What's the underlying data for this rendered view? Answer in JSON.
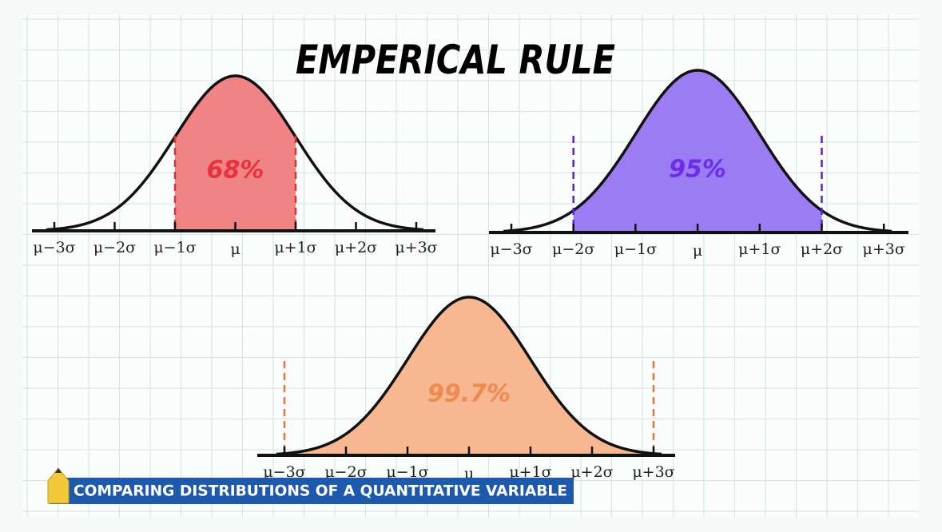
{
  "title": "EMPERICAL RULE",
  "panels": [
    {
      "label": "68%",
      "ticks": [
        "μ−3σ",
        "μ−2σ",
        "μ−1σ",
        "μ",
        "μ+1σ",
        "μ+2σ",
        "μ+3σ"
      ]
    },
    {
      "label": "95%",
      "ticks": [
        "μ−3σ",
        "μ−2σ",
        "μ−1σ",
        "μ",
        "μ+1σ",
        "μ+2σ",
        "μ+3σ"
      ]
    },
    {
      "label": "99.7%",
      "ticks": [
        "μ−3σ",
        "μ−2σ",
        "μ−1σ",
        "μ",
        "μ+1σ",
        "μ+2σ",
        "μ+3σ"
      ]
    }
  ],
  "caption": "COMPARING DISTRIBUTIONS OF A QUANTITATIVE VARIABLE"
}
